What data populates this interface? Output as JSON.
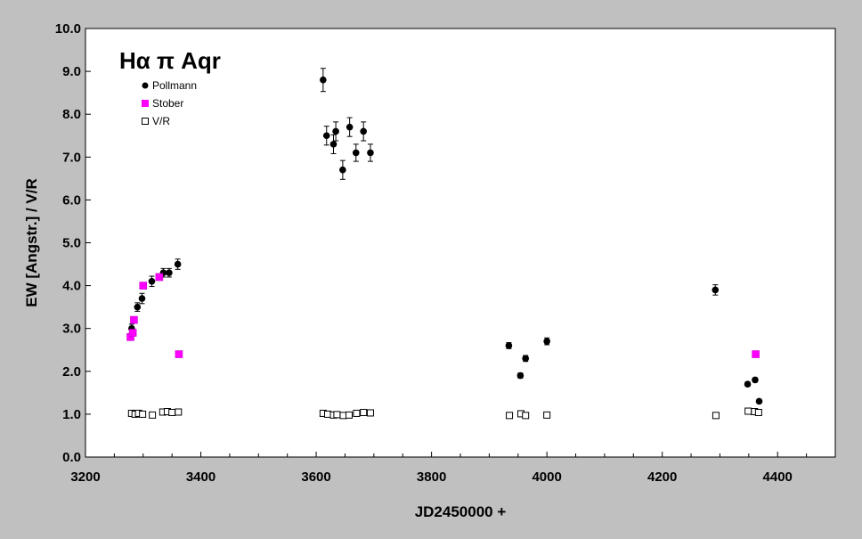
{
  "chart_data": {
    "type": "scatter",
    "title": "Hα π Aqr",
    "xlabel": "JD2450000 +",
    "ylabel": "EW [Angstr.] / V/R",
    "xlim": [
      3200,
      4500
    ],
    "ylim": [
      0.0,
      10.0
    ],
    "x_ticks": [
      3200,
      3400,
      3600,
      3800,
      4000,
      4200,
      4400
    ],
    "y_ticks": [
      "0.0",
      "1.0",
      "2.0",
      "3.0",
      "4.0",
      "5.0",
      "6.0",
      "7.0",
      "8.0",
      "9.0",
      "10.0"
    ],
    "grid": false,
    "legend_position": "top-left",
    "series": [
      {
        "name": "Pollmann",
        "marker": "filled-circle",
        "color": "#000000",
        "points": [
          {
            "x": 3280,
            "y": 3.0,
            "err": 0.1
          },
          {
            "x": 3290,
            "y": 3.5,
            "err": 0.1
          },
          {
            "x": 3298,
            "y": 3.7,
            "err": 0.12
          },
          {
            "x": 3315,
            "y": 4.1,
            "err": 0.12
          },
          {
            "x": 3335,
            "y": 4.3,
            "err": 0.1
          },
          {
            "x": 3345,
            "y": 4.3,
            "err": 0.1
          },
          {
            "x": 3360,
            "y": 4.5,
            "err": 0.12
          },
          {
            "x": 3612,
            "y": 8.8,
            "err": 0.27
          },
          {
            "x": 3618,
            "y": 7.5,
            "err": 0.22
          },
          {
            "x": 3630,
            "y": 7.3,
            "err": 0.22
          },
          {
            "x": 3634,
            "y": 7.6,
            "err": 0.22
          },
          {
            "x": 3646,
            "y": 6.7,
            "err": 0.22
          },
          {
            "x": 3658,
            "y": 7.7,
            "err": 0.22
          },
          {
            "x": 3669,
            "y": 7.1,
            "err": 0.2
          },
          {
            "x": 3682,
            "y": 7.6,
            "err": 0.22
          },
          {
            "x": 3694,
            "y": 7.1,
            "err": 0.2
          },
          {
            "x": 3934,
            "y": 2.6,
            "err": 0.07
          },
          {
            "x": 3954,
            "y": 1.9,
            "err": 0.06
          },
          {
            "x": 3963,
            "y": 2.3,
            "err": 0.07
          },
          {
            "x": 4000,
            "y": 2.7,
            "err": 0.08
          },
          {
            "x": 4292,
            "y": 3.9,
            "err": 0.12
          },
          {
            "x": 4348,
            "y": 1.7,
            "err": 0.05
          },
          {
            "x": 4361,
            "y": 1.8,
            "err": 0.05
          },
          {
            "x": 4368,
            "y": 1.3,
            "err": 0.04
          }
        ]
      },
      {
        "name": "Stober",
        "marker": "filled-square",
        "color": "#ff00ff",
        "points": [
          {
            "x": 3278,
            "y": 2.8
          },
          {
            "x": 3282,
            "y": 2.9
          },
          {
            "x": 3284,
            "y": 3.2
          },
          {
            "x": 3300,
            "y": 4.0
          },
          {
            "x": 3328,
            "y": 4.2
          },
          {
            "x": 3362,
            "y": 2.4
          },
          {
            "x": 4362,
            "y": 2.4
          }
        ]
      },
      {
        "name": "V/R",
        "marker": "open-square",
        "color": "#000000",
        "points": [
          {
            "x": 3280,
            "y": 1.02
          },
          {
            "x": 3286,
            "y": 1.0
          },
          {
            "x": 3292,
            "y": 1.02
          },
          {
            "x": 3299,
            "y": 1.0
          },
          {
            "x": 3316,
            "y": 0.98
          },
          {
            "x": 3334,
            "y": 1.05
          },
          {
            "x": 3342,
            "y": 1.06
          },
          {
            "x": 3350,
            "y": 1.04
          },
          {
            "x": 3361,
            "y": 1.05
          },
          {
            "x": 3612,
            "y": 1.02
          },
          {
            "x": 3620,
            "y": 1.0
          },
          {
            "x": 3630,
            "y": 0.98
          },
          {
            "x": 3636,
            "y": 0.99
          },
          {
            "x": 3647,
            "y": 0.97
          },
          {
            "x": 3657,
            "y": 0.98
          },
          {
            "x": 3670,
            "y": 1.02
          },
          {
            "x": 3682,
            "y": 1.04
          },
          {
            "x": 3694,
            "y": 1.03
          },
          {
            "x": 3935,
            "y": 0.97
          },
          {
            "x": 3955,
            "y": 1.01
          },
          {
            "x": 3963,
            "y": 0.97
          },
          {
            "x": 4000,
            "y": 0.98
          },
          {
            "x": 4293,
            "y": 0.97
          },
          {
            "x": 4349,
            "y": 1.07
          },
          {
            "x": 4360,
            "y": 1.06
          },
          {
            "x": 4367,
            "y": 1.04
          }
        ]
      }
    ]
  }
}
